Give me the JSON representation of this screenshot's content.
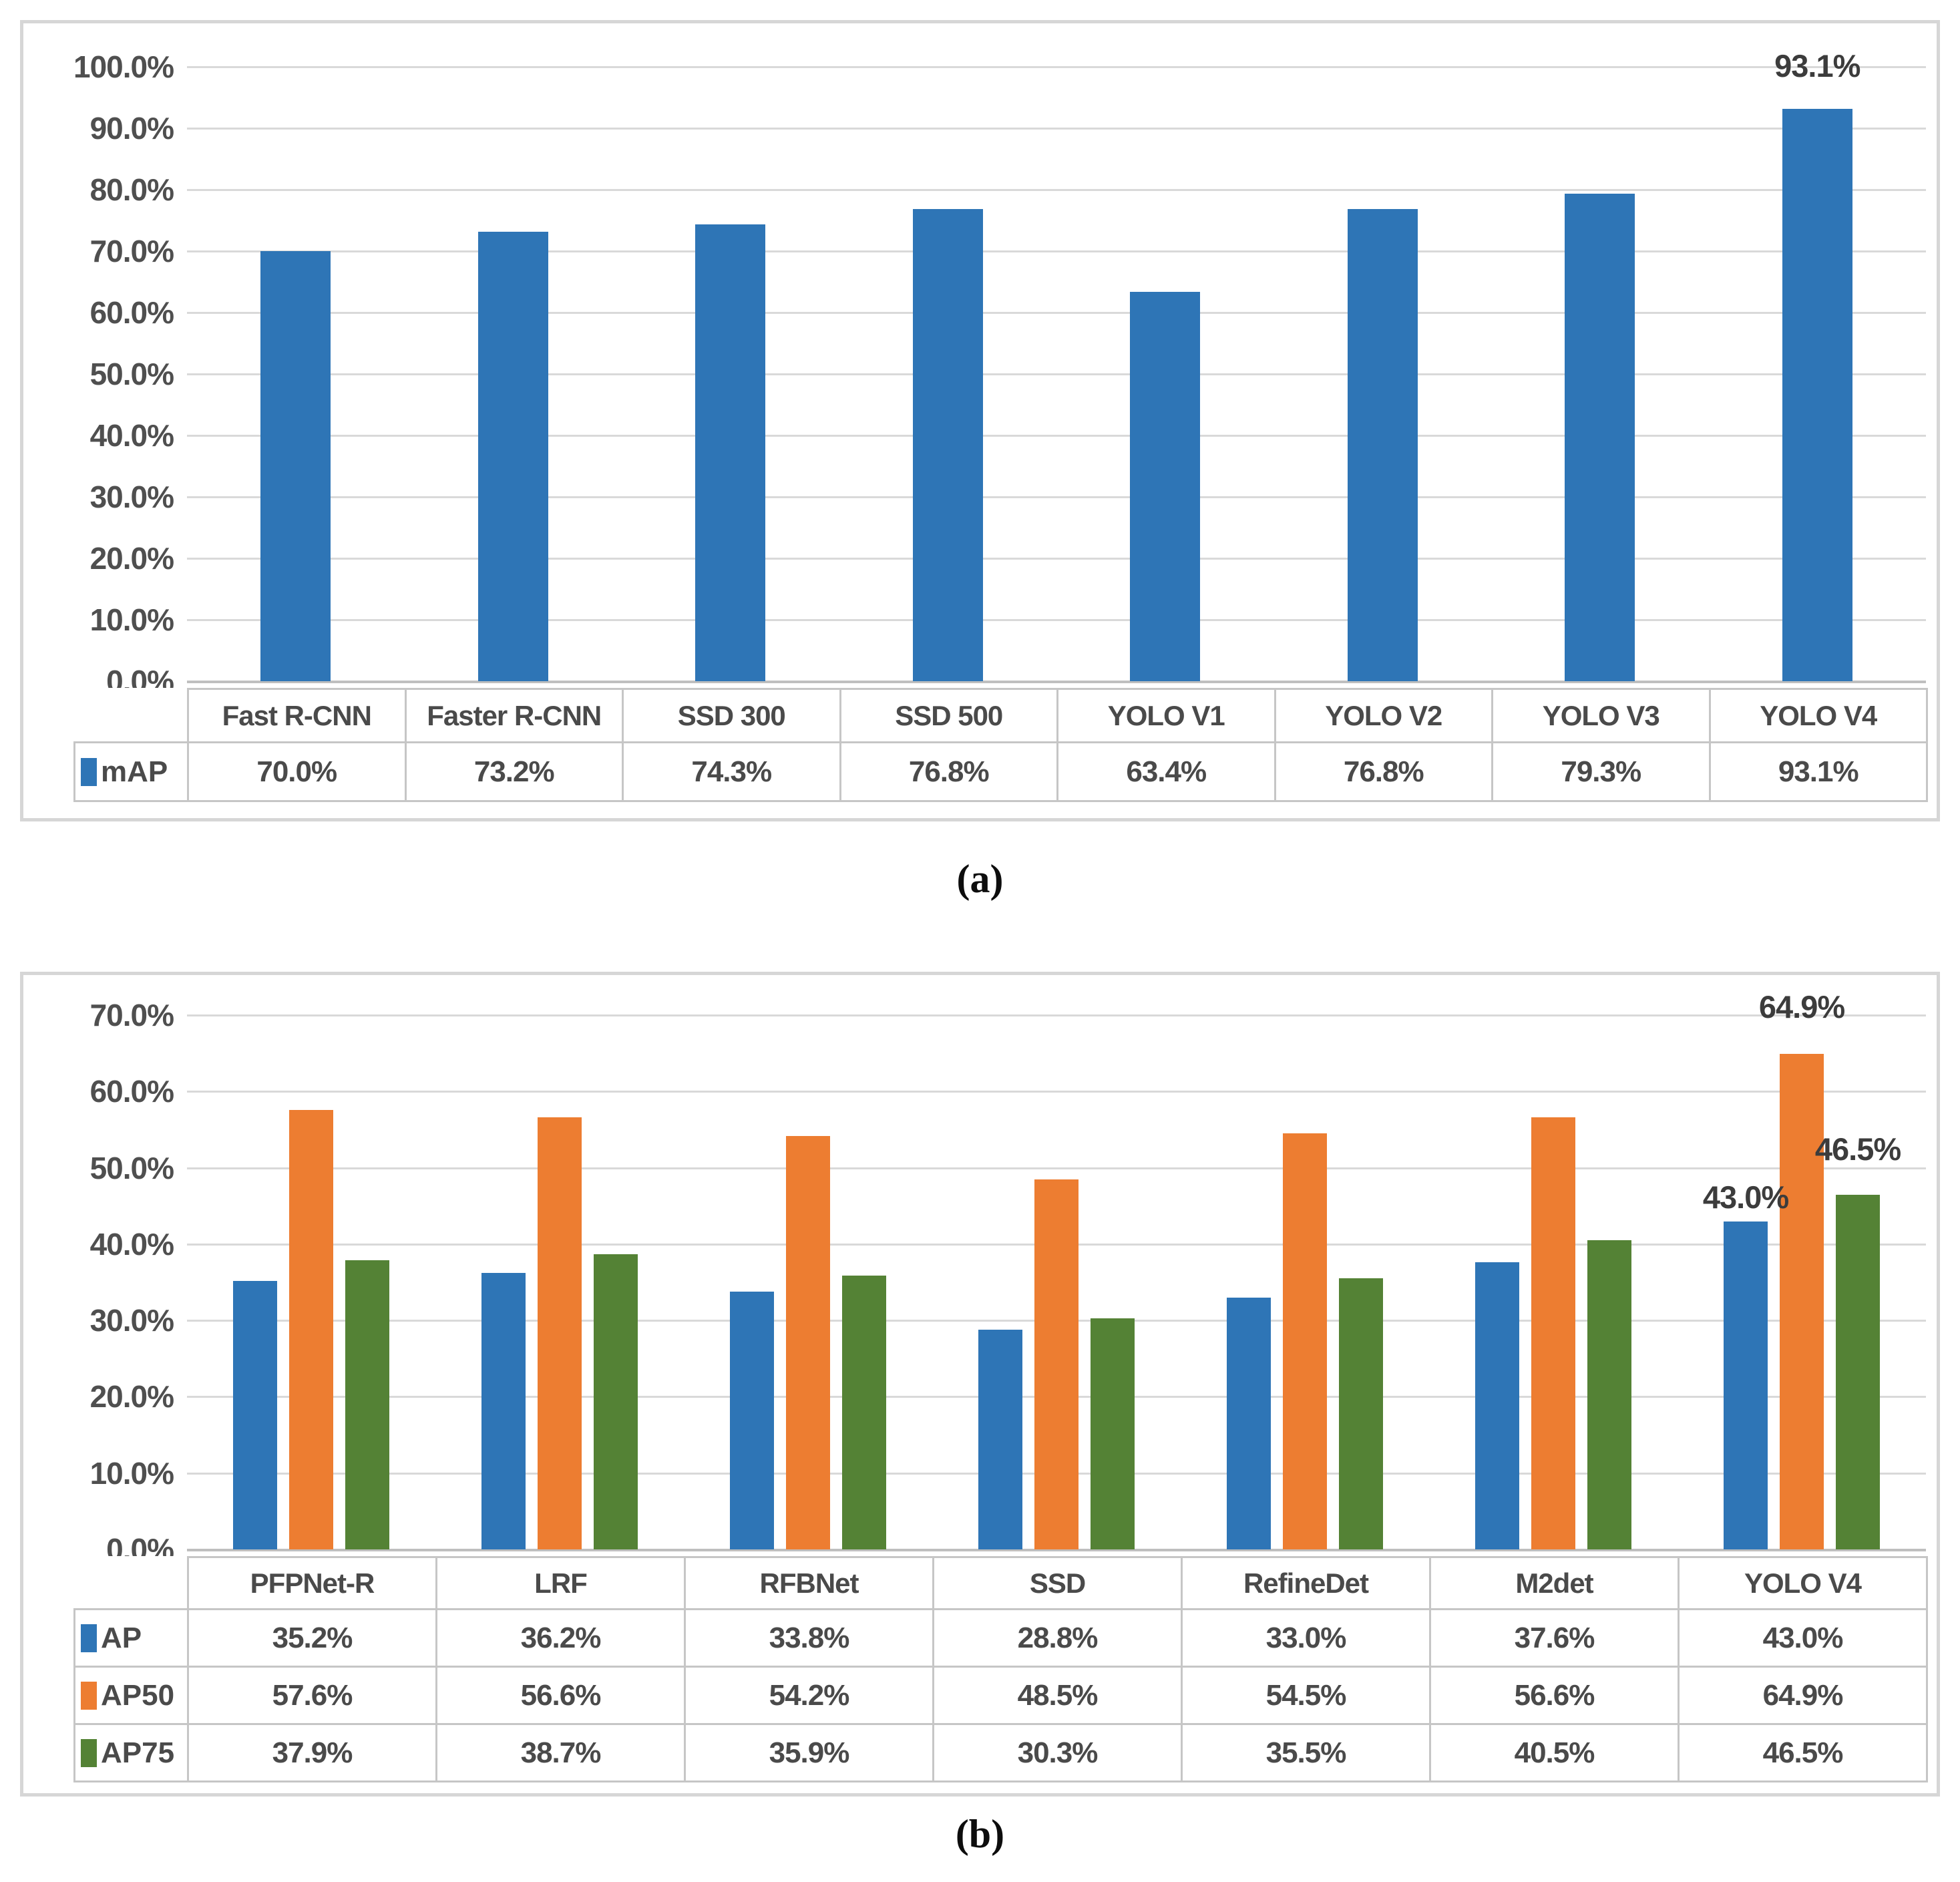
{
  "figure": {
    "caption_a": "(a)",
    "caption_b": "(b)"
  },
  "colors": {
    "blue": "#2E75B6",
    "orange": "#ED7D31",
    "green": "#548235"
  },
  "chart_data": [
    {
      "id": "a",
      "type": "bar",
      "title": "",
      "xlabel": "",
      "ylabel": "",
      "categories": [
        "Fast R-CNN",
        "Faster R-CNN",
        "SSD 300",
        "SSD 500",
        "YOLO V1",
        "YOLO V2",
        "YOLO V3",
        "YOLO V4"
      ],
      "series": [
        {
          "name": "mAP",
          "color_key": "blue",
          "values": [
            70.0,
            73.2,
            74.3,
            76.8,
            63.4,
            76.8,
            79.3,
            93.1
          ],
          "display": [
            "70.0%",
            "73.2%",
            "74.3%",
            "76.8%",
            "63.4%",
            "76.8%",
            "79.3%",
            "93.1%"
          ]
        }
      ],
      "ylim": [
        0,
        100
      ],
      "ytick_step": 10,
      "ytick_labels": [
        "100.0%",
        "90.0%",
        "80.0%",
        "70.0%",
        "60.0%",
        "50.0%",
        "40.0%",
        "30.0%",
        "20.0%",
        "10.0%",
        "0.0%"
      ],
      "grid": true,
      "legend_position": "table-left",
      "data_labels": [
        {
          "series": 0,
          "category": 7,
          "text": "93.1%"
        }
      ]
    },
    {
      "id": "b",
      "type": "bar",
      "title": "",
      "xlabel": "",
      "ylabel": "",
      "categories": [
        "PFPNet-R",
        "LRF",
        "RFBNet",
        "SSD",
        "RefineDet",
        "M2det",
        "YOLO V4"
      ],
      "series": [
        {
          "name": "AP",
          "color_key": "blue",
          "values": [
            35.2,
            36.2,
            33.8,
            28.8,
            33.0,
            37.6,
            43.0
          ],
          "display": [
            "35.2%",
            "36.2%",
            "33.8%",
            "28.8%",
            "33.0%",
            "37.6%",
            "43.0%"
          ]
        },
        {
          "name": "AP50",
          "color_key": "orange",
          "values": [
            57.6,
            56.6,
            54.2,
            48.5,
            54.5,
            56.6,
            64.9
          ],
          "display": [
            "57.6%",
            "56.6%",
            "54.2%",
            "48.5%",
            "54.5%",
            "56.6%",
            "64.9%"
          ]
        },
        {
          "name": "AP75",
          "color_key": "green",
          "values": [
            37.9,
            38.7,
            35.9,
            30.3,
            35.5,
            40.5,
            46.5
          ],
          "display": [
            "37.9%",
            "38.7%",
            "35.9%",
            "30.3%",
            "35.5%",
            "40.5%",
            "46.5%"
          ]
        }
      ],
      "ylim": [
        0,
        70
      ],
      "ytick_step": 10,
      "ytick_labels": [
        "70.0%",
        "60.0%",
        "50.0%",
        "40.0%",
        "30.0%",
        "20.0%",
        "10.0%",
        "0.0%"
      ],
      "grid": true,
      "legend_position": "table-left",
      "data_labels": [
        {
          "series": 0,
          "category": 6,
          "text": "43.0%"
        },
        {
          "series": 1,
          "category": 6,
          "text": "64.9%"
        },
        {
          "series": 2,
          "category": 6,
          "text": "46.5%"
        }
      ]
    }
  ]
}
